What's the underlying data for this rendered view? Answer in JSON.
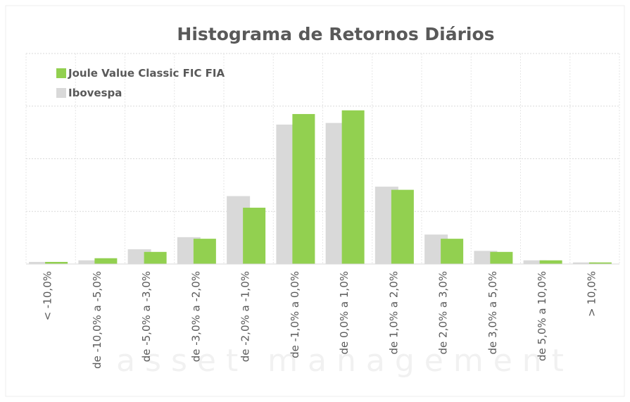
{
  "chart_data": {
    "type": "bar",
    "title": "Histograma de Retornos Diários",
    "watermark": "asset management",
    "categories": [
      "< -10,0%",
      "de -10,0% a -5,0%",
      "de -5,0% a -3,0%",
      "de -3,0% a -2,0%",
      "de -2,0% a -1,0%",
      "de -1,0% a 0,0%",
      "de 0,0% a 1,0%",
      "de 1,0% a 2,0%",
      "de 2,0% a 3,0%",
      "de 3,0% a 5,0%",
      "de 5,0% a 10,0%",
      "> 10,0%"
    ],
    "series": [
      {
        "name": "Ibovespa",
        "color": "#d9d9d9",
        "values": [
          0.4,
          0.7,
          2.8,
          5.1,
          12.9,
          26.5,
          26.8,
          14.7,
          5.6,
          2.5,
          0.7,
          0.3
        ]
      },
      {
        "name": "Joule Value Classic FIC FIA",
        "color": "#92d050",
        "values": [
          0.4,
          1.1,
          2.3,
          4.8,
          10.7,
          28.5,
          29.2,
          14.1,
          4.8,
          2.3,
          0.7,
          0.3
        ]
      }
    ],
    "ylim": [
      0,
      40
    ],
    "yticks": [
      0,
      10,
      20,
      30,
      40
    ],
    "grid": true,
    "legend": "top-left"
  }
}
